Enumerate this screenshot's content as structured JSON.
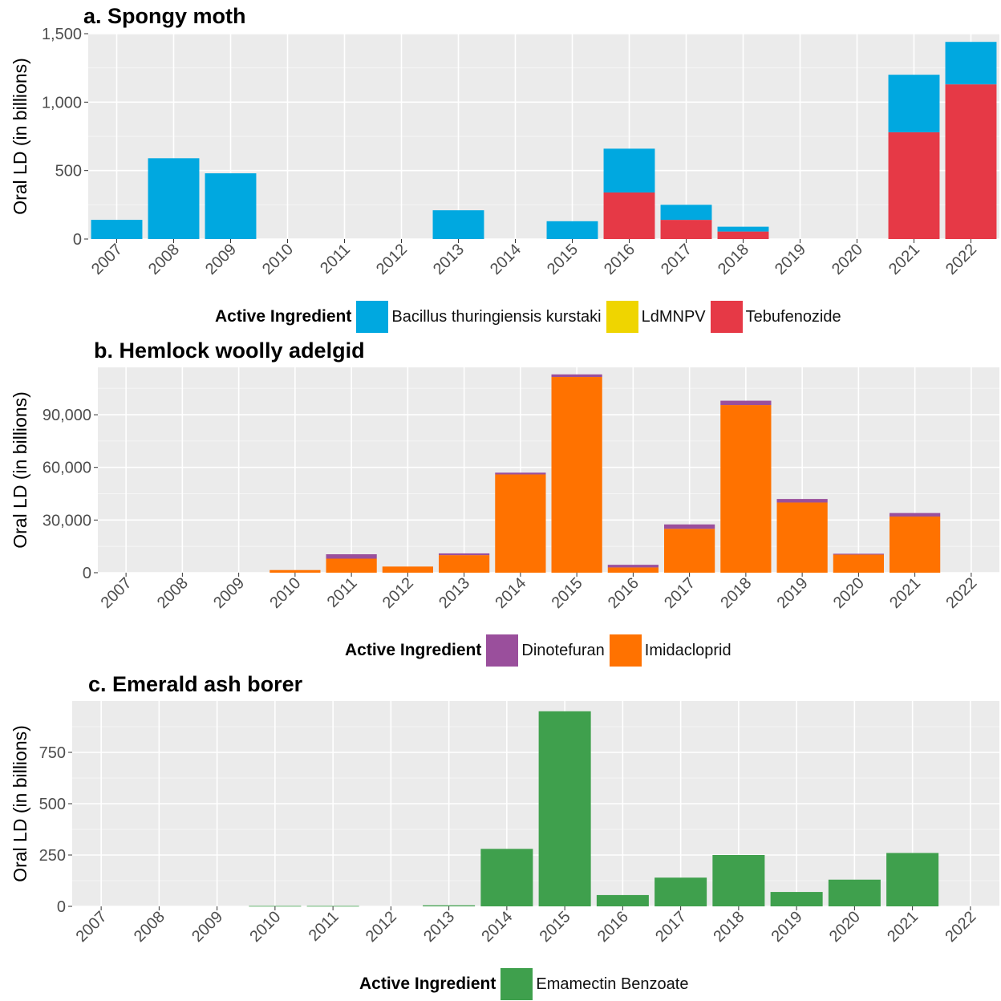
{
  "chart_data": [
    {
      "type": "bar",
      "stacked": true,
      "title": "a. Spongy moth",
      "ylabel": "Oral LD (in billions)",
      "xlabel": "",
      "ylim": [
        0,
        1500
      ],
      "yticks": [
        0,
        500,
        1000,
        1500
      ],
      "ytick_labels": [
        "0",
        "500",
        "1,000",
        "1,500"
      ],
      "categories": [
        "2007",
        "2008",
        "2009",
        "2010",
        "2011",
        "2012",
        "2013",
        "2014",
        "2015",
        "2016",
        "2017",
        "2018",
        "2019",
        "2020",
        "2021",
        "2022"
      ],
      "legend_title": "Active Ingredient",
      "legend_position": "bottom",
      "series": [
        {
          "name": "Tebufenozide",
          "color": "#E63946",
          "values": [
            0,
            0,
            0,
            0,
            0,
            0,
            0,
            0,
            0,
            340,
            140,
            55,
            0,
            0,
            780,
            1130
          ]
        },
        {
          "name": "LdMNPV",
          "color": "#EFD500",
          "values": [
            0,
            0,
            0,
            0,
            0,
            0,
            0,
            0,
            0,
            0,
            0,
            0,
            0,
            0,
            0,
            0
          ]
        },
        {
          "name": "Bacillus thuringiensis kurstaki",
          "color": "#00A8E0",
          "values": [
            140,
            590,
            480,
            0,
            0,
            0,
            210,
            0,
            130,
            320,
            110,
            35,
            0,
            0,
            420,
            310
          ]
        }
      ],
      "legend_order": [
        "Bacillus thuringiensis kurstaki",
        "LdMNPV",
        "Tebufenozide"
      ]
    },
    {
      "type": "bar",
      "stacked": true,
      "title": "b. Hemlock woolly adelgid",
      "ylabel": "Oral LD (in billions)",
      "xlabel": "",
      "ylim": [
        0,
        117000
      ],
      "yticks": [
        0,
        30000,
        60000,
        90000
      ],
      "ytick_labels": [
        "0",
        "30,000",
        "60,000",
        "90,000"
      ],
      "categories": [
        "2007",
        "2008",
        "2009",
        "2010",
        "2011",
        "2012",
        "2013",
        "2014",
        "2015",
        "2016",
        "2017",
        "2018",
        "2019",
        "2020",
        "2021",
        "2022"
      ],
      "legend_title": "Active Ingredient",
      "legend_position": "bottom",
      "series": [
        {
          "name": "Imidacloprid",
          "color": "#FF7200",
          "values": [
            0,
            0,
            0,
            1500,
            8000,
            3500,
            10000,
            56000,
            111500,
            3000,
            25000,
            95500,
            40000,
            10300,
            32000,
            0
          ]
        },
        {
          "name": "Dinotefuran",
          "color": "#9A4F9C",
          "values": [
            0,
            0,
            0,
            0,
            2500,
            0,
            1000,
            1000,
            1500,
            1500,
            2500,
            2500,
            2000,
            500,
            2000,
            0
          ]
        }
      ],
      "legend_order": [
        "Dinotefuran",
        "Imidacloprid"
      ]
    },
    {
      "type": "bar",
      "stacked": true,
      "title": "c. Emerald ash borer",
      "ylabel": "Oral LD (in billions)",
      "xlabel": "",
      "ylim": [
        0,
        1000
      ],
      "yticks": [
        0,
        250,
        500,
        750
      ],
      "ytick_labels": [
        "0",
        "250",
        "500",
        "750"
      ],
      "categories": [
        "2007",
        "2008",
        "2009",
        "2010",
        "2011",
        "2012",
        "2013",
        "2014",
        "2015",
        "2016",
        "2017",
        "2018",
        "2019",
        "2020",
        "2021",
        "2022"
      ],
      "legend_title": "Active Ingredient",
      "legend_position": "bottom",
      "series": [
        {
          "name": "Emamectin Benzoate",
          "color": "#3FA04D",
          "values": [
            0,
            0,
            0,
            2,
            2,
            0,
            5,
            280,
            950,
            55,
            140,
            250,
            70,
            130,
            260,
            0
          ]
        }
      ],
      "legend_order": [
        "Emamectin Benzoate"
      ]
    }
  ]
}
